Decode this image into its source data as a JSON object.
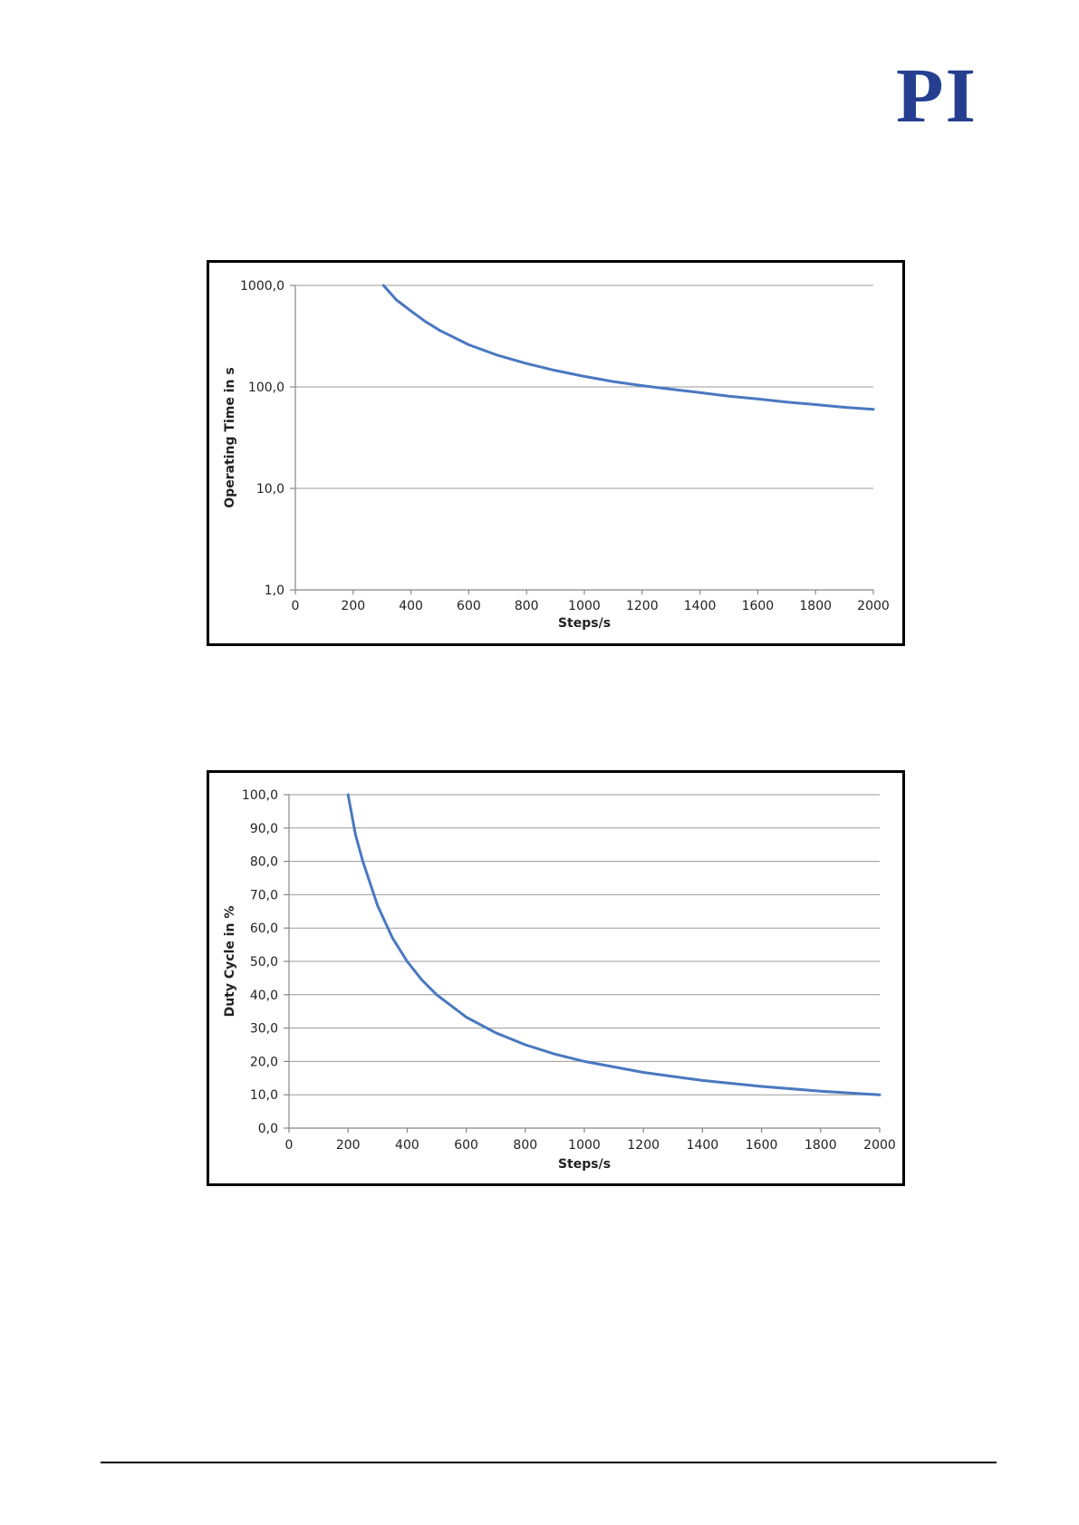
{
  "logo": {
    "text": "PI",
    "color": "#253e8f"
  },
  "chart_data": [
    {
      "type": "line",
      "title": "",
      "xlabel": "Steps/s",
      "ylabel": "Operating Time in s",
      "yscale": "log",
      "xlim": [
        0,
        2000
      ],
      "ylim": [
        1,
        1000
      ],
      "x_ticks": [
        0,
        200,
        400,
        600,
        800,
        1000,
        1200,
        1400,
        1600,
        1800,
        2000
      ],
      "y_ticks": [
        1,
        10,
        100,
        1000
      ],
      "y_tick_labels": [
        "1,0",
        "10,0",
        "100,0",
        "1000,0"
      ],
      "grid": true,
      "line_color": "#4a78c0",
      "series": [
        {
          "x": [
            305,
            350,
            400,
            450,
            500,
            600,
            700,
            800,
            900,
            1000,
            1100,
            1200,
            1300,
            1400,
            1500,
            1600,
            1700,
            1800,
            1900,
            2000
          ],
          "values": [
            1000,
            720,
            560,
            440,
            360,
            260,
            205,
            170,
            145,
            127,
            113,
            103,
            95,
            88,
            81,
            76,
            71,
            67,
            63,
            60
          ]
        }
      ]
    },
    {
      "type": "line",
      "title": "",
      "xlabel": "Steps/s",
      "ylabel": "Duty Cycle in %",
      "xlim": [
        0,
        2000
      ],
      "ylim": [
        0,
        100
      ],
      "x_ticks": [
        0,
        200,
        400,
        600,
        800,
        1000,
        1200,
        1400,
        1600,
        1800,
        2000
      ],
      "y_ticks": [
        0,
        10,
        20,
        30,
        40,
        50,
        60,
        70,
        80,
        90,
        100
      ],
      "y_tick_labels": [
        "0,0",
        "10,0",
        "20,0",
        "30,0",
        "40,0",
        "50,0",
        "60,0",
        "70,0",
        "80,0",
        "90,0",
        "100,0"
      ],
      "grid": true,
      "line_color": "#4a78c0",
      "series": [
        {
          "x": [
            200,
            225,
            250,
            300,
            350,
            400,
            450,
            500,
            600,
            700,
            800,
            900,
            1000,
            1200,
            1400,
            1600,
            1800,
            2000
          ],
          "values": [
            100,
            88,
            80,
            66.7,
            57.1,
            50,
            44.4,
            40,
            33.3,
            28.6,
            25,
            22.2,
            20,
            16.7,
            14.3,
            12.5,
            11.1,
            10
          ]
        }
      ]
    }
  ]
}
